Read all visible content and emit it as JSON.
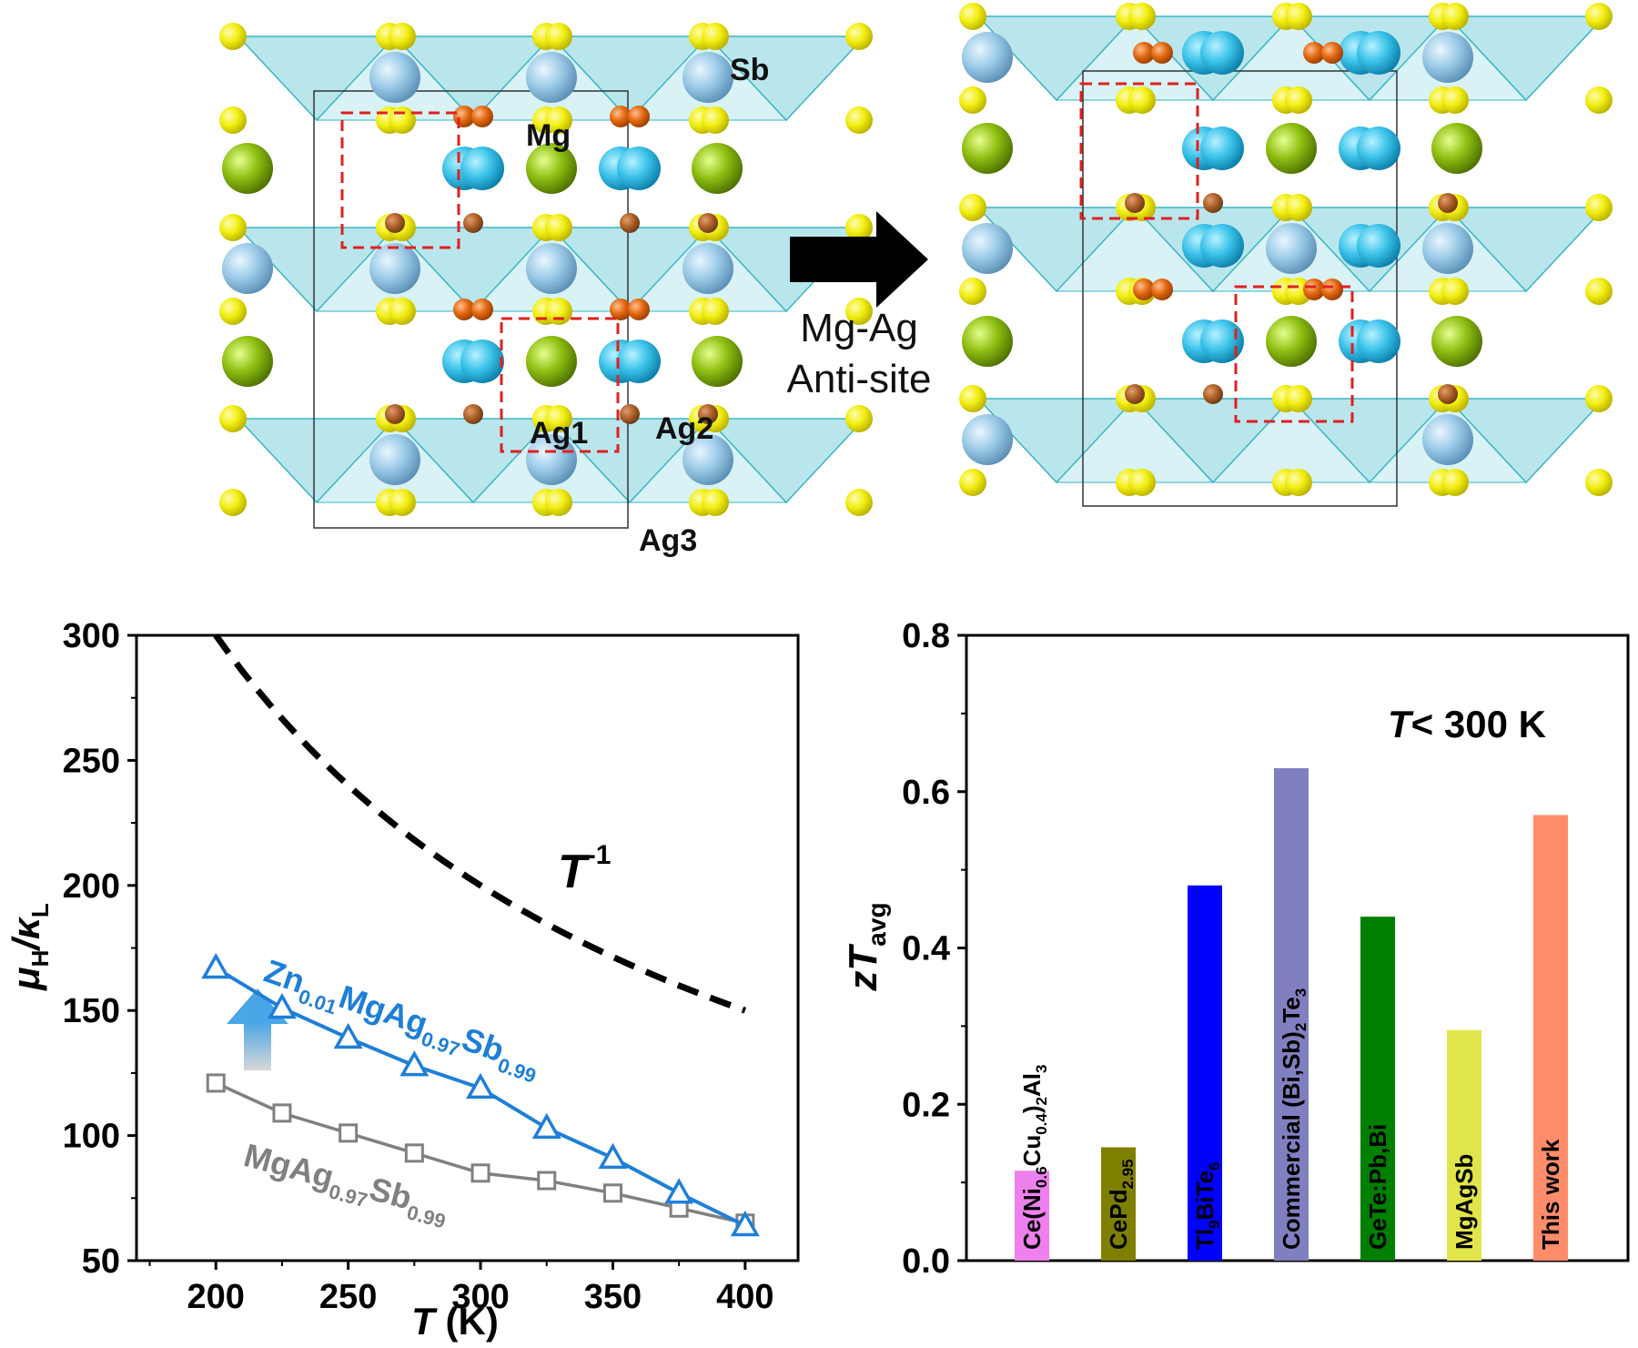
{
  "structure_left": {
    "labels": {
      "sb": "Sb",
      "mg": "Mg",
      "ag1": "Ag1",
      "ag2": "Ag2",
      "ag3": "Ag3"
    }
  },
  "transition": {
    "line1": "Mg-Ag",
    "line2": "Anti-site"
  },
  "colors": {
    "sb": "#f2ee10",
    "mg": "#e36a12",
    "mg_dark": "#b0622a",
    "ag1": "#3cc3ea",
    "ag2": "#8fbf12",
    "ag3": "#9ccbe8",
    "tetra": "#7fd2dc",
    "highlight": "#e02020",
    "zn_series": "#1e7fd8",
    "base_series": "#808080",
    "fit": "#000000"
  },
  "chart_data": [
    {
      "type": "line",
      "xlabel_italic": "T",
      "xlabel_rest": " (K)",
      "ylabel": {
        "main1": "μ",
        "sub1": "H",
        "mid": "/κ",
        "sub2": "L"
      },
      "xlim": [
        170,
        420
      ],
      "ylim": [
        50,
        300
      ],
      "xticks": [
        "200",
        "250",
        "300",
        "350",
        "400"
      ],
      "yticks": [
        "50",
        "100",
        "150",
        "200",
        "250",
        "300"
      ],
      "annotation": {
        "base": "T",
        "sup": "-1"
      },
      "fit_curve": {
        "style": "dashed",
        "form": "T^-1",
        "x": [
          200,
          400
        ],
        "y_at_200": 300
      },
      "series": [
        {
          "label_parts": [
            "Zn",
            "0.01",
            "MgAg",
            "0.97",
            "Sb",
            "0.99"
          ],
          "marker": "triangle",
          "x": [
            200,
            225,
            250,
            275,
            300,
            325,
            350,
            375,
            400
          ],
          "y": [
            167,
            151,
            139,
            128,
            119,
            103,
            91,
            77,
            64
          ]
        },
        {
          "label_parts": [
            "MgAg",
            "0.97",
            "Sb",
            "0.99"
          ],
          "marker": "square",
          "x": [
            200,
            225,
            250,
            275,
            300,
            325,
            350,
            375,
            400
          ],
          "y": [
            121,
            109,
            101,
            93,
            85,
            82,
            77,
            71,
            65
          ]
        }
      ]
    },
    {
      "type": "bar",
      "ylabel": {
        "main": "zT",
        "sub": "avg"
      },
      "ylim": [
        0,
        0.8
      ],
      "yticks": [
        "0.0",
        "0.2",
        "0.4",
        "0.6",
        "0.8"
      ],
      "annotation": {
        "italic": "T",
        "rest": "< 300 K"
      },
      "categories": [
        {
          "label_parts": [
            [
              "Ce(Ni",
              ""
            ],
            [
              "0.6",
              "sub"
            ],
            [
              "Cu",
              ""
            ],
            [
              "0.4",
              "sub"
            ],
            [
              ")",
              ""
            ],
            [
              "2",
              "sub"
            ],
            [
              "Al",
              ""
            ],
            [
              "3",
              "sub"
            ]
          ],
          "value": 0.115,
          "color": "#ee80ee"
        },
        {
          "label_parts": [
            [
              "CePd",
              ""
            ],
            [
              "2.95",
              "sub"
            ]
          ],
          "value": 0.145,
          "color": "#808000"
        },
        {
          "label_parts": [
            [
              "Tl",
              ""
            ],
            [
              "9",
              "sub"
            ],
            [
              "BiTe",
              ""
            ],
            [
              "6",
              "sub"
            ]
          ],
          "value": 0.48,
          "color": "#0000ff"
        },
        {
          "label_parts": [
            [
              "Commercial (Bi,Sb)",
              ""
            ],
            [
              "2",
              "sub"
            ],
            [
              "Te",
              ""
            ],
            [
              "3",
              "sub"
            ]
          ],
          "value": 0.63,
          "color": "#8080c0"
        },
        {
          "label_parts": [
            [
              "GeTe:Pb,Bi",
              ""
            ]
          ],
          "value": 0.44,
          "color": "#008000"
        },
        {
          "label_parts": [
            [
              "MgAgSb",
              ""
            ]
          ],
          "value": 0.295,
          "color": "#e0e64a"
        },
        {
          "label_parts": [
            [
              "This work",
              ""
            ]
          ],
          "value": 0.57,
          "color": "#ff8c6a"
        }
      ]
    }
  ]
}
